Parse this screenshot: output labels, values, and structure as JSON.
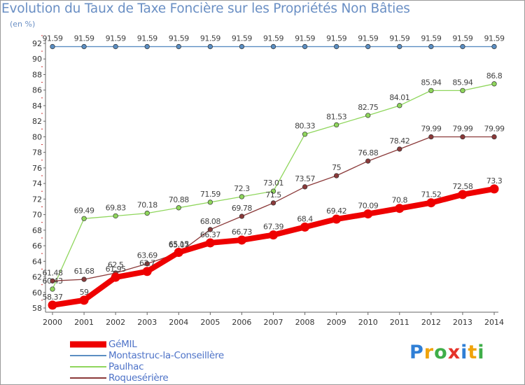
{
  "header": {
    "title": "Evolution du Taux de Taxe Foncière sur les Propriétés Non Bâties",
    "unit": "(en %)"
  },
  "logo": {
    "letters": [
      "P",
      "r",
      "o",
      "x",
      "i",
      "t",
      "i"
    ],
    "colors": [
      "#2f7fd6",
      "#f0a30a",
      "#3fae49",
      "#e5332a",
      "#2f7fd6",
      "#f0a30a",
      "#3fae49"
    ]
  },
  "chart_data": {
    "type": "line",
    "title": "Evolution du Taux de Taxe Foncière sur les Propriétés Non Bâties",
    "ylabel": "(en %)",
    "xlabel": "",
    "ylim": [
      58,
      92
    ],
    "y_ticks": [
      58,
      60,
      62,
      64,
      66,
      68,
      70,
      72,
      74,
      76,
      78,
      80,
      82,
      84,
      86,
      88,
      90,
      92
    ],
    "grid": false,
    "legend_position": "bottom-left",
    "x": [
      "2000",
      "2001",
      "2002",
      "2003",
      "2004",
      "2005",
      "2006",
      "2007",
      "2008",
      "2009",
      "2010",
      "2011",
      "2012",
      "2013",
      "2014"
    ],
    "series": [
      {
        "name": "Montastruc-la-Conseillère",
        "color": "#5b8ec2",
        "values": [
          91.59,
          91.59,
          91.59,
          91.59,
          91.59,
          91.59,
          91.59,
          91.59,
          91.59,
          91.59,
          91.59,
          91.59,
          91.59,
          91.59,
          91.59
        ],
        "labels": [
          "91.59",
          "91.59",
          "91.59",
          "91.59",
          "91.59",
          "91.59",
          "91.59",
          "91.59",
          "91.59",
          "91.59",
          "91.59",
          "91.59",
          "91.59",
          "91.59",
          "91.59"
        ]
      },
      {
        "name": "Paulhac",
        "color": "#8fd65c",
        "values": [
          60.43,
          69.49,
          69.83,
          70.18,
          70.88,
          71.59,
          72.3,
          73.01,
          80.33,
          81.53,
          82.75,
          84.01,
          85.94,
          85.94,
          86.8
        ],
        "labels": [
          "60.43",
          "69.49",
          "69.83",
          "70.18",
          "70.88",
          "71.59",
          "72.3",
          "73.01",
          "80.33",
          "81.53",
          "82.75",
          "84.01",
          "85.94",
          "85.94",
          "86.8"
        ]
      },
      {
        "name": "Roquesérière",
        "color": "#8b3a3a",
        "values": [
          61.48,
          61.68,
          62.5,
          63.69,
          65.07,
          68.08,
          69.78,
          71.5,
          73.57,
          75,
          76.88,
          78.42,
          79.99,
          79.99,
          79.99
        ],
        "labels": [
          "61.48",
          "61.68",
          "62.5",
          "63.69",
          "65.07",
          "68.08",
          "69.78",
          "71.5",
          "73.57",
          "75",
          "76.88",
          "78.42",
          "79.99",
          "79.99",
          "79.99"
        ]
      },
      {
        "name": "GéMIL",
        "color": "#ee0000",
        "values": [
          58.37,
          59,
          61.95,
          62.7,
          65.15,
          66.37,
          66.73,
          67.39,
          68.4,
          69.42,
          70.09,
          70.8,
          71.52,
          72.58,
          73.3
        ],
        "labels": [
          "58.37",
          "59",
          "61.95",
          "62.7",
          "65.15",
          "66.37",
          "66.73",
          "67.39",
          "68.4",
          "69.42",
          "70.09",
          "70.8",
          "71.52",
          "72.58",
          "73.3"
        ]
      }
    ],
    "legend": [
      "GéMIL",
      "Montastruc-la-Conseillère",
      "Paulhac",
      "Roquesérière"
    ]
  }
}
